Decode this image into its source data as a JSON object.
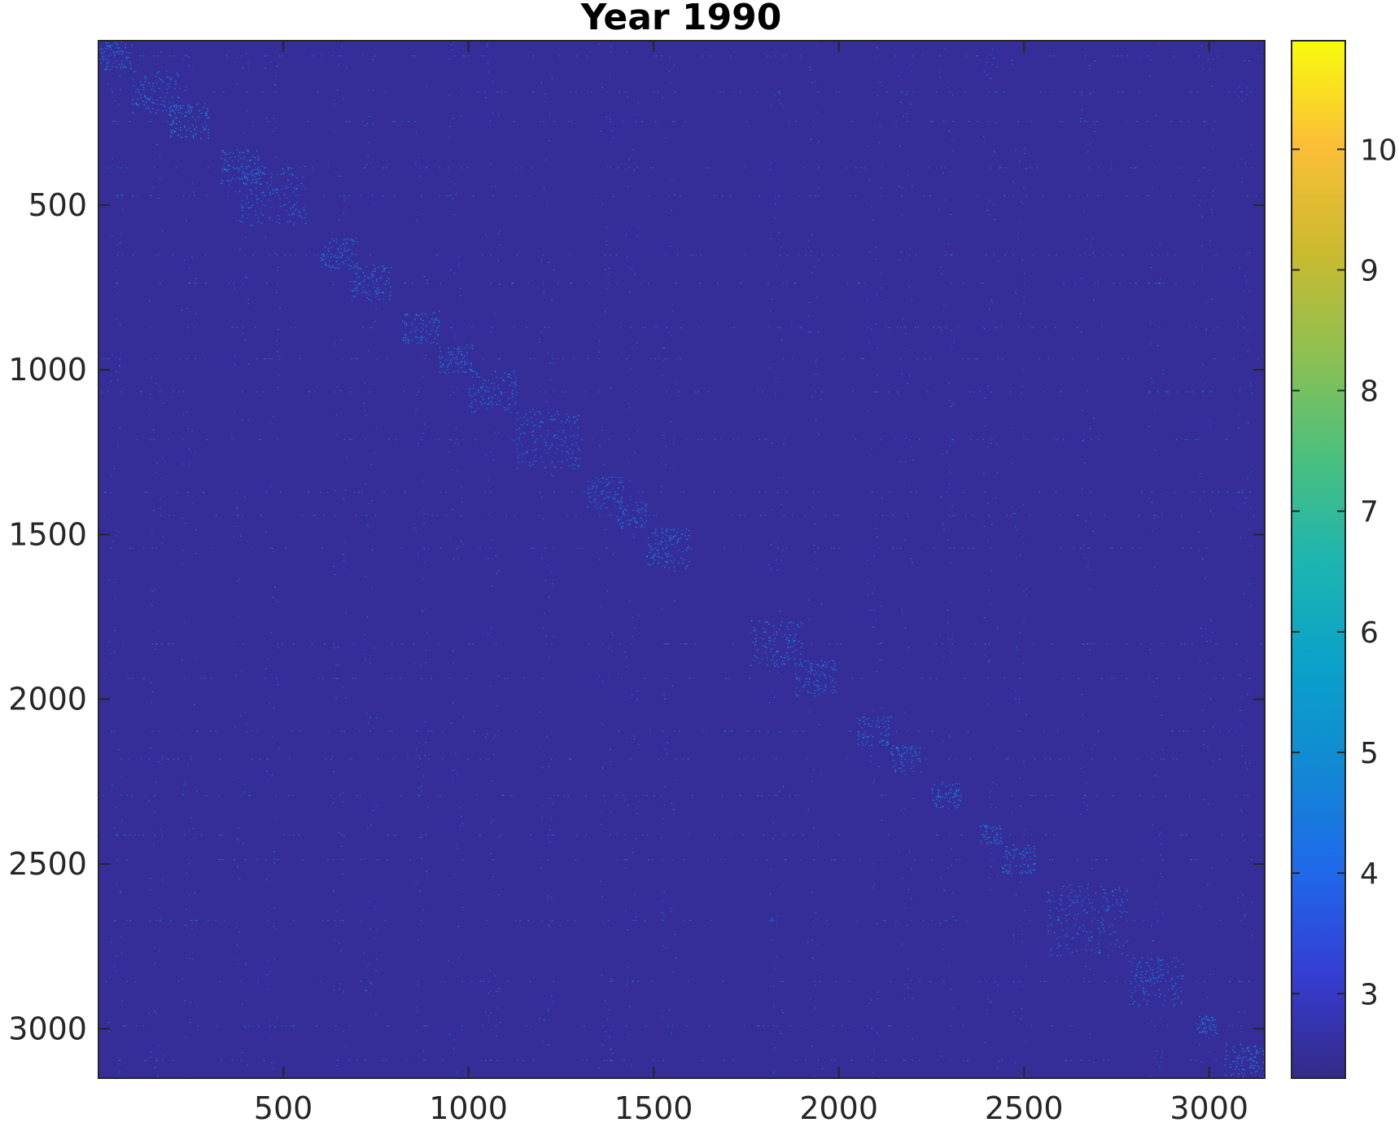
{
  "chart_data": {
    "type": "heatmap",
    "title": "Year 1990",
    "matrix_size": 3150,
    "xlim": [
      1,
      3150
    ],
    "ylim": [
      1,
      3150
    ],
    "y_axis_reversed": true,
    "x_ticks": [
      500,
      1000,
      1500,
      2000,
      2500,
      3000
    ],
    "y_ticks": [
      500,
      1000,
      1500,
      2000,
      2500,
      3000
    ],
    "x_tick_labels": [
      "500",
      "1000",
      "1500",
      "2000",
      "2500",
      "3000"
    ],
    "y_tick_labels": [
      "500",
      "1000",
      "1500",
      "2000",
      "2500",
      "3000"
    ],
    "colorbar": {
      "range": [
        2.3,
        10.9
      ],
      "ticks": [
        3,
        4,
        5,
        6,
        7,
        8,
        9,
        10
      ],
      "tick_labels": [
        "3",
        "4",
        "5",
        "6",
        "7",
        "8",
        "9",
        "10"
      ],
      "colormap": "parula",
      "location": "right"
    },
    "background_value": 2.5,
    "diagonal_blocks": [
      {
        "start": 1,
        "end": 90,
        "value": 4.5
      },
      {
        "start": 90,
        "end": 220,
        "value": 4.6
      },
      {
        "start": 190,
        "end": 300,
        "value": 5.0
      },
      {
        "start": 330,
        "end": 440,
        "value": 4.7
      },
      {
        "start": 380,
        "end": 560,
        "value": 4.5
      },
      {
        "start": 600,
        "end": 700,
        "value": 4.6
      },
      {
        "start": 680,
        "end": 790,
        "value": 4.5
      },
      {
        "start": 820,
        "end": 920,
        "value": 4.4
      },
      {
        "start": 920,
        "end": 1010,
        "value": 4.4
      },
      {
        "start": 1000,
        "end": 1130,
        "value": 4.5
      },
      {
        "start": 1120,
        "end": 1300,
        "value": 4.4
      },
      {
        "start": 1320,
        "end": 1420,
        "value": 4.4
      },
      {
        "start": 1400,
        "end": 1480,
        "value": 4.5
      },
      {
        "start": 1480,
        "end": 1600,
        "value": 4.8
      },
      {
        "start": 1760,
        "end": 1900,
        "value": 4.7
      },
      {
        "start": 1880,
        "end": 1990,
        "value": 4.5
      },
      {
        "start": 2050,
        "end": 2140,
        "value": 4.5
      },
      {
        "start": 2140,
        "end": 2220,
        "value": 4.6
      },
      {
        "start": 2250,
        "end": 2330,
        "value": 4.6
      },
      {
        "start": 2380,
        "end": 2440,
        "value": 4.5
      },
      {
        "start": 2440,
        "end": 2530,
        "value": 4.8
      },
      {
        "start": 2560,
        "end": 2780,
        "value": 4.4
      },
      {
        "start": 2780,
        "end": 2930,
        "value": 4.5
      },
      {
        "start": 2960,
        "end": 3020,
        "value": 4.6
      },
      {
        "start": 3040,
        "end": 3150,
        "value": 4.8
      }
    ],
    "grid": false,
    "legend": "none"
  }
}
